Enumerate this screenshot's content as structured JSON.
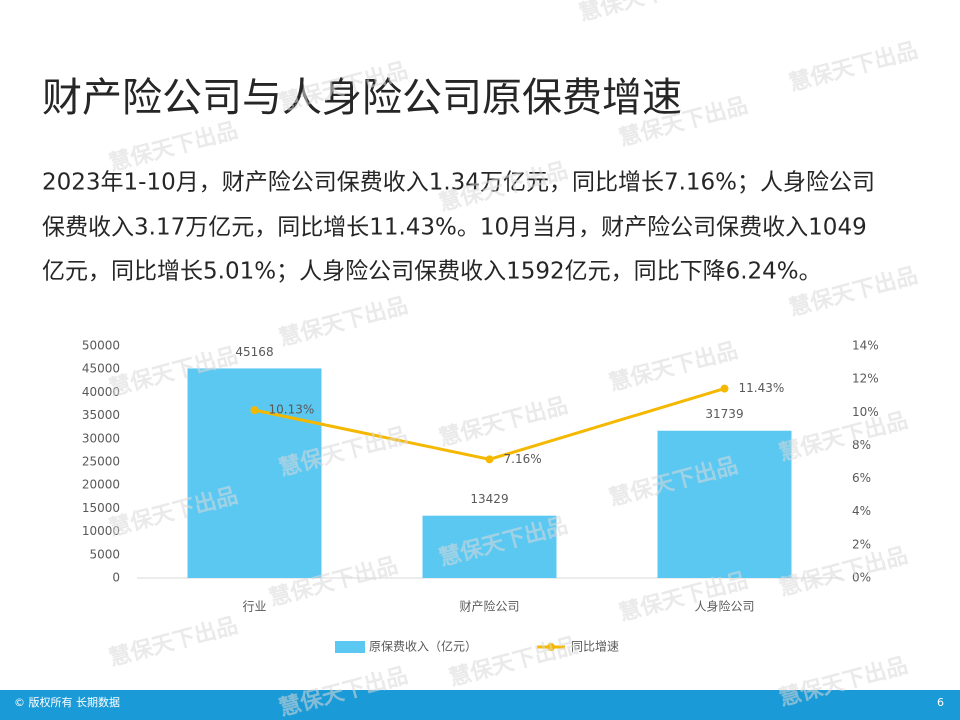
{
  "header": {
    "title": "财产险公司与人身险公司原保费增速"
  },
  "body": {
    "lines": [
      "2023年1-10月，财产险公司保费收入1.34万亿元，同比增长7.16%；人身险公司",
      "保费收入3.17万亿元，同比增长11.43%。10月当月，财产险公司保费收入1049",
      "亿元，同比增长5.01%；人身险公司保费收入1592亿元，同比下降6.24%。"
    ]
  },
  "watermark": "慧保天下出品",
  "chart_data": {
    "type": "bar-line",
    "categories": [
      "行业",
      "财产险公司",
      "人身险公司"
    ],
    "series": [
      {
        "name": "原保费收入（亿元）",
        "type": "bar",
        "color": "#5bc8f2",
        "values": [
          45168,
          13429,
          31739
        ]
      },
      {
        "name": "同比增速",
        "type": "line",
        "axis": "y2",
        "color": "#f5b800",
        "values": [
          10.13,
          7.16,
          11.43
        ],
        "value_labels": [
          "10.13%",
          "7.16%",
          "11.43%"
        ]
      }
    ],
    "ylim": [
      0,
      50000
    ],
    "yticks": [
      0,
      5000,
      10000,
      15000,
      20000,
      25000,
      30000,
      35000,
      40000,
      45000,
      50000
    ],
    "y2lim": [
      0,
      14
    ],
    "y2ticks": [
      {
        "value": 0,
        "label": "0%"
      },
      {
        "value": 2,
        "label": "2%"
      },
      {
        "value": 4,
        "label": "4%"
      },
      {
        "value": 6,
        "label": "6%"
      },
      {
        "value": 8,
        "label": "8%"
      },
      {
        "value": 10,
        "label": "10%"
      },
      {
        "value": 12,
        "label": "12%"
      },
      {
        "value": 14,
        "label": "14%"
      }
    ],
    "legend": "bottom",
    "grid": false
  },
  "footer": {
    "left": "© 版权所有 长期数据",
    "page": "6"
  }
}
